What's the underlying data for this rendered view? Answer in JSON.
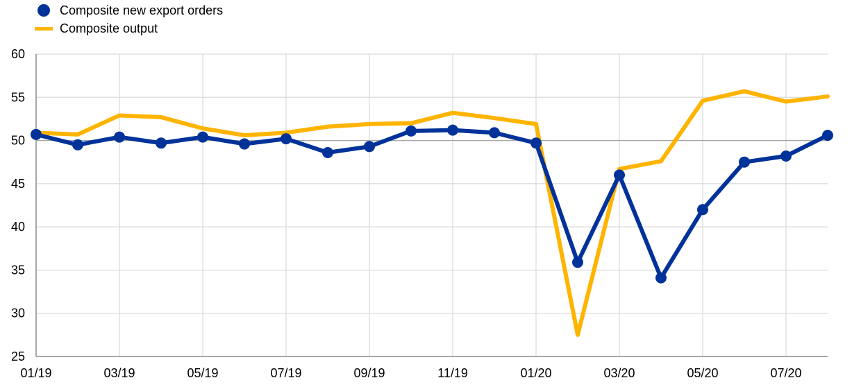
{
  "chart_data": {
    "type": "line",
    "title": "",
    "xlabel": "",
    "ylabel": "",
    "ylim": [
      25,
      60
    ],
    "yticks": [
      25,
      30,
      35,
      40,
      45,
      50,
      55,
      60
    ],
    "reference_line": 50,
    "grid": true,
    "legend_position": "top-left",
    "x": [
      "01/19",
      "02/19",
      "03/19",
      "04/19",
      "05/19",
      "06/19",
      "07/19",
      "08/19",
      "09/19",
      "10/19",
      "11/19",
      "12/19",
      "01/20",
      "02/20",
      "03/20",
      "04/20",
      "05/20",
      "06/20",
      "07/20",
      "08/20"
    ],
    "xtick_labels": [
      "01/19",
      "03/19",
      "05/19",
      "07/19",
      "09/19",
      "11/19",
      "01/20",
      "03/20",
      "05/20",
      "07/20"
    ],
    "series": [
      {
        "name": "Composite new export orders",
        "color": "#003299",
        "marker": "circle",
        "values": [
          50.7,
          49.5,
          50.4,
          49.7,
          50.4,
          49.6,
          50.2,
          48.6,
          49.3,
          51.1,
          51.2,
          50.9,
          49.7,
          35.9,
          46.0,
          34.1,
          42.0,
          47.5,
          48.2,
          50.6
        ]
      },
      {
        "name": "Composite output",
        "color": "#FFB400",
        "marker": "none",
        "values": [
          50.9,
          50.7,
          52.9,
          52.7,
          51.4,
          50.6,
          50.9,
          51.6,
          51.9,
          52.0,
          53.2,
          52.6,
          51.9,
          27.5,
          46.7,
          47.6,
          54.6,
          55.7,
          54.5,
          55.1
        ]
      }
    ]
  }
}
